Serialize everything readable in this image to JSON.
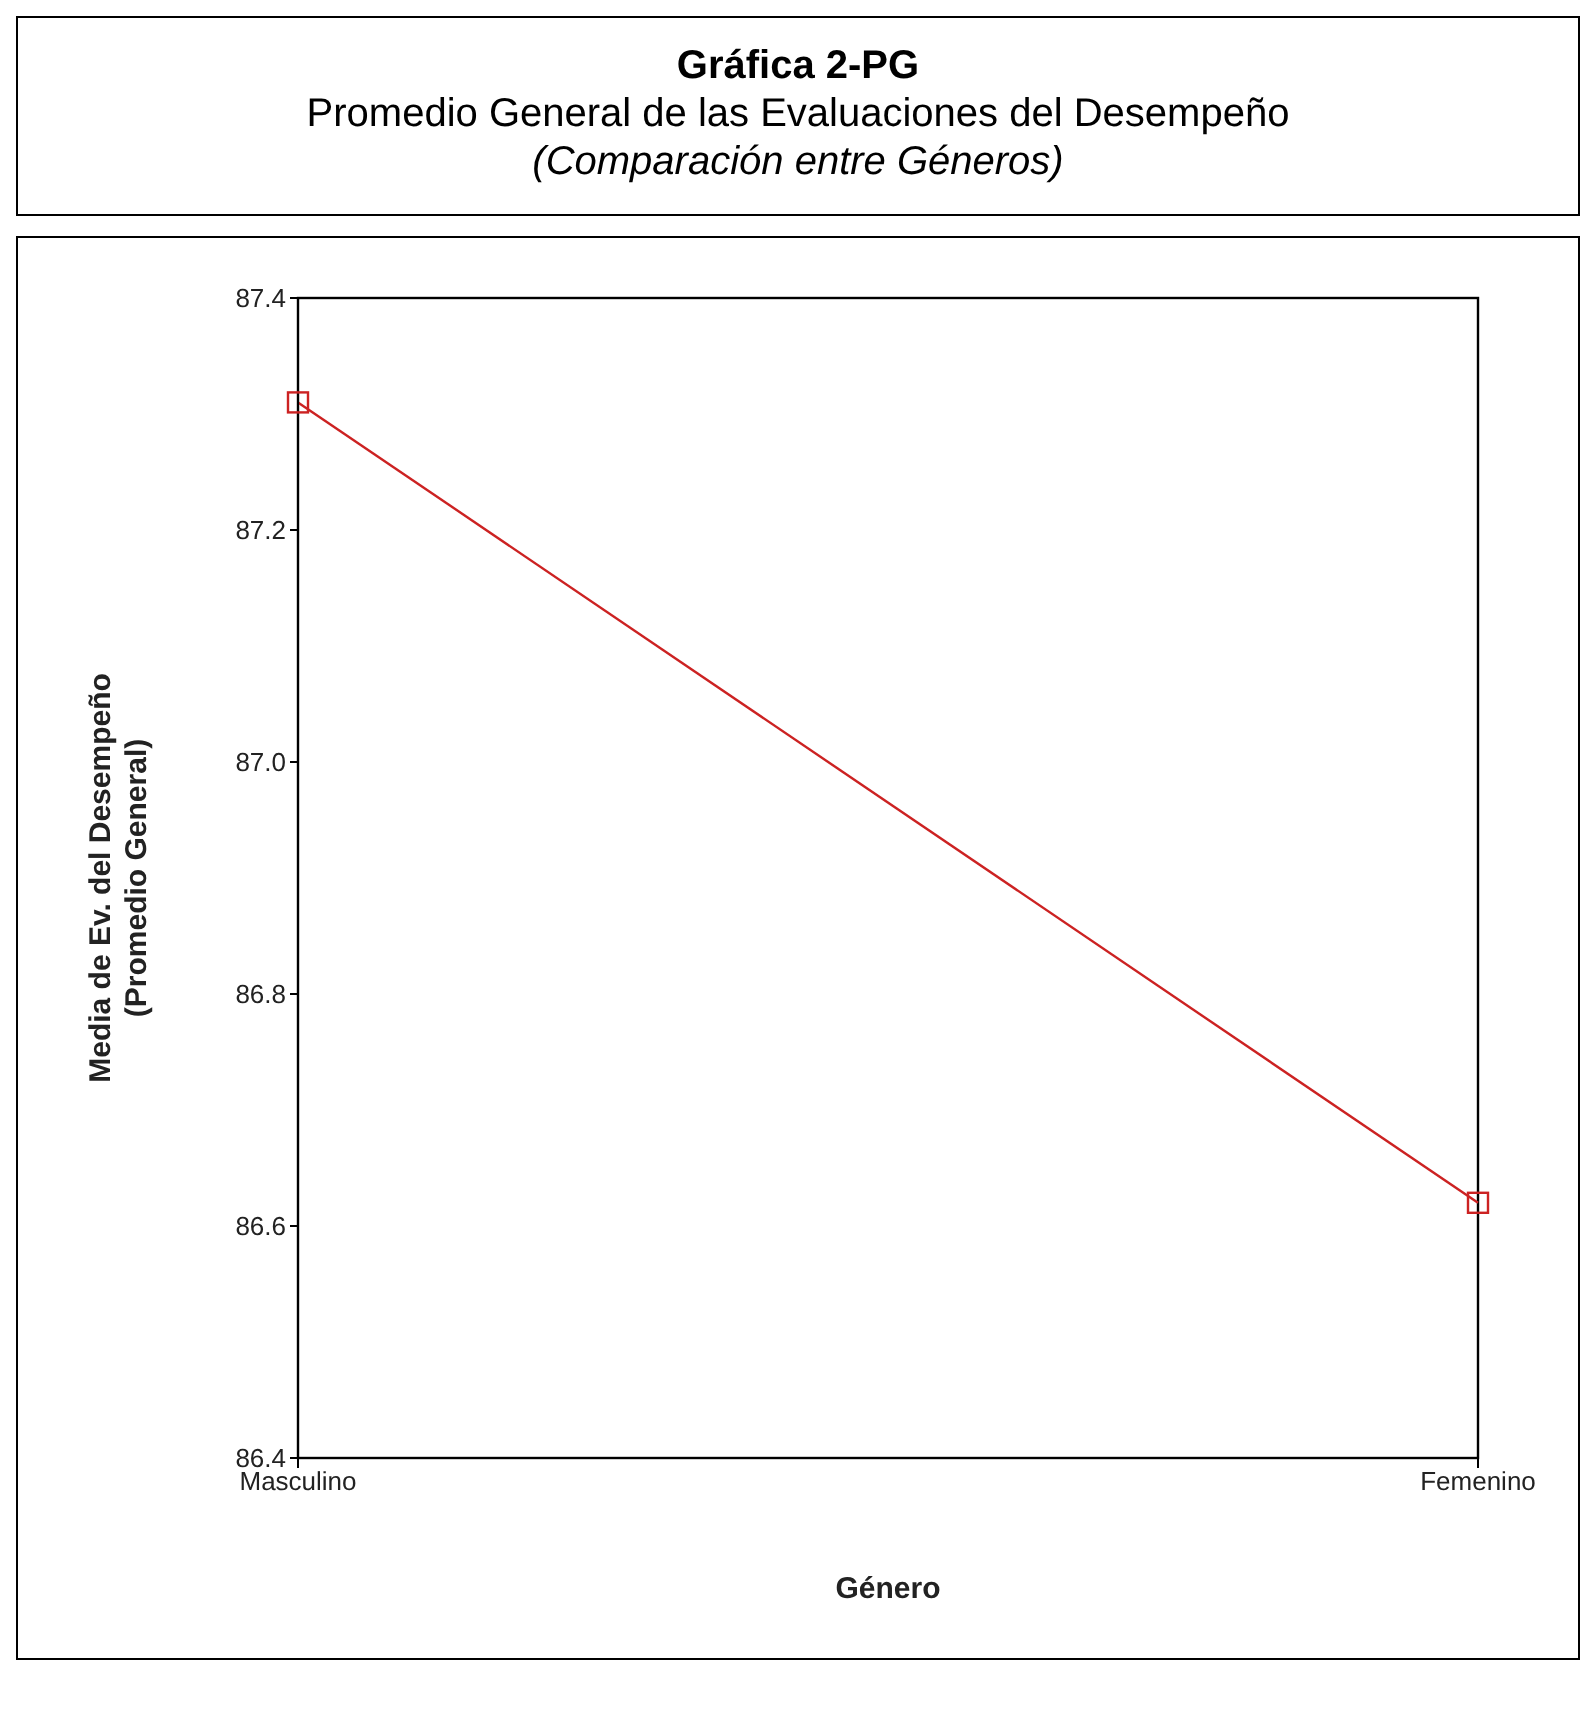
{
  "chart_data": {
    "type": "line",
    "title": "Gráfica 2-PG",
    "subtitle": "Promedio General de las Evaluaciones del Desempeño\n(Comparación entre Géneros)",
    "xlabel": "Género",
    "ylabel": "Media de Ev. del Desempeño\n(Promedio General)",
    "categories": [
      "Masculino",
      "Femenino"
    ],
    "series": [
      {
        "color": "#cc2222",
        "values": [
          87.31,
          86.62
        ]
      }
    ],
    "ylim": [
      86.4,
      87.4
    ],
    "yticks": [
      {
        "value": 86.4,
        "label": "86.4"
      },
      {
        "value": 86.6,
        "label": "86.6"
      },
      {
        "value": 86.8,
        "label": "86.8"
      },
      {
        "value": 87.0,
        "label": "87.0"
      },
      {
        "value": 87.2,
        "label": "87.2"
      },
      {
        "value": 87.4,
        "label": "87.4"
      }
    ],
    "marker": "square",
    "line_style": "solid",
    "grid": false,
    "legend": false
  }
}
